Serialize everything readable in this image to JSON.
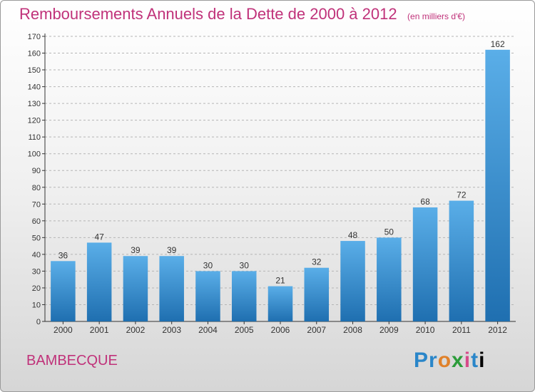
{
  "chart_data": {
    "type": "bar",
    "title": "Remboursements Annuels de la Dette de 2000 à 2012",
    "unit_note": "(en milliers d'€)",
    "categories": [
      "2000",
      "2001",
      "2002",
      "2003",
      "2004",
      "2005",
      "2006",
      "2007",
      "2008",
      "2009",
      "2010",
      "2011",
      "2012"
    ],
    "values": [
      36,
      47,
      39,
      39,
      30,
      30,
      21,
      32,
      48,
      50,
      68,
      72,
      162
    ],
    "ylim": [
      0,
      170
    ],
    "yticks": [
      0,
      10,
      20,
      30,
      40,
      50,
      60,
      70,
      80,
      90,
      100,
      110,
      120,
      130,
      140,
      150,
      160,
      170
    ],
    "grid": "y-dashed",
    "colors": {
      "bar_light": "#5aaee8",
      "bar_dark": "#1f6fb0",
      "title": "#c0327a",
      "axis": "#333333"
    }
  },
  "footer": {
    "commune": "BAMBECQUE",
    "logo": "Proxiti"
  }
}
